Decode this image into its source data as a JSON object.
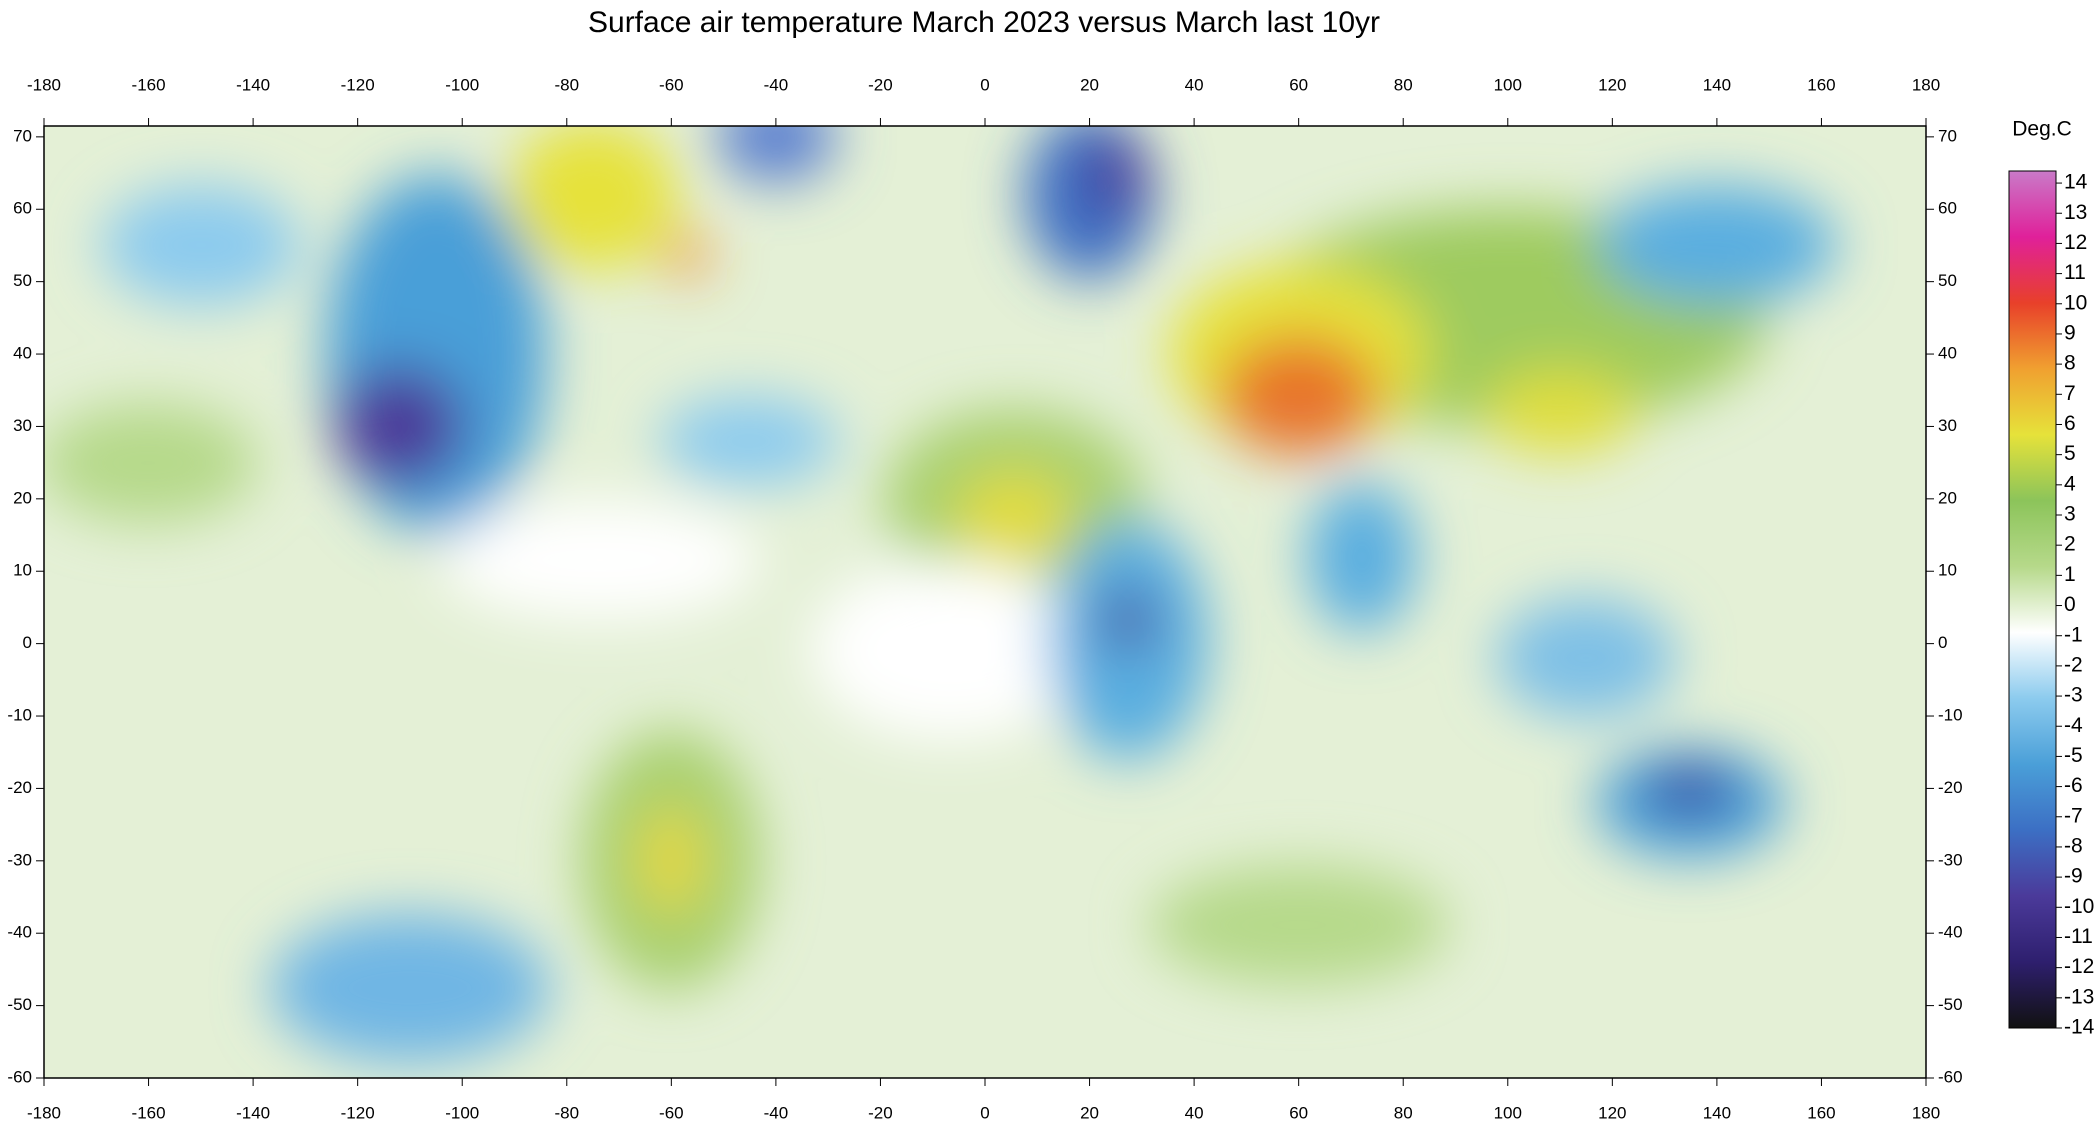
{
  "title": "Surface air temperature March 2023 versus March last 10yr",
  "x_axis": {
    "xlim": [
      -180,
      180
    ],
    "ticks": [
      -180,
      -160,
      -140,
      -120,
      -100,
      -80,
      -60,
      -40,
      -20,
      0,
      20,
      40,
      60,
      80,
      100,
      120,
      140,
      160,
      180
    ]
  },
  "y_axis": {
    "ylim": [
      -60,
      71.5
    ],
    "ticks": [
      -60,
      -50,
      -40,
      -30,
      -20,
      -10,
      0,
      10,
      20,
      30,
      40,
      50,
      60,
      70
    ]
  },
  "colorbar": {
    "label": "Deg.C",
    "clim": [
      -14,
      14.4
    ],
    "ticks": [
      14,
      13,
      12,
      11,
      10,
      9,
      8,
      7,
      6,
      5,
      4,
      3,
      2,
      1,
      0,
      -1,
      -2,
      -3,
      -4,
      -5,
      -6,
      -7,
      -8,
      -9,
      -10,
      -11,
      -12,
      -13,
      -14
    ],
    "colors": [
      "#111111",
      "#2e1f6e",
      "#4b3a9a",
      "#3c6fc4",
      "#4a9fd8",
      "#8ccbee",
      "#ffffff",
      "#b6d98a",
      "#8cc45a",
      "#e6e23a",
      "#f0a030",
      "#e8402a",
      "#e0209a",
      "#c97ac8"
    ]
  }
}
